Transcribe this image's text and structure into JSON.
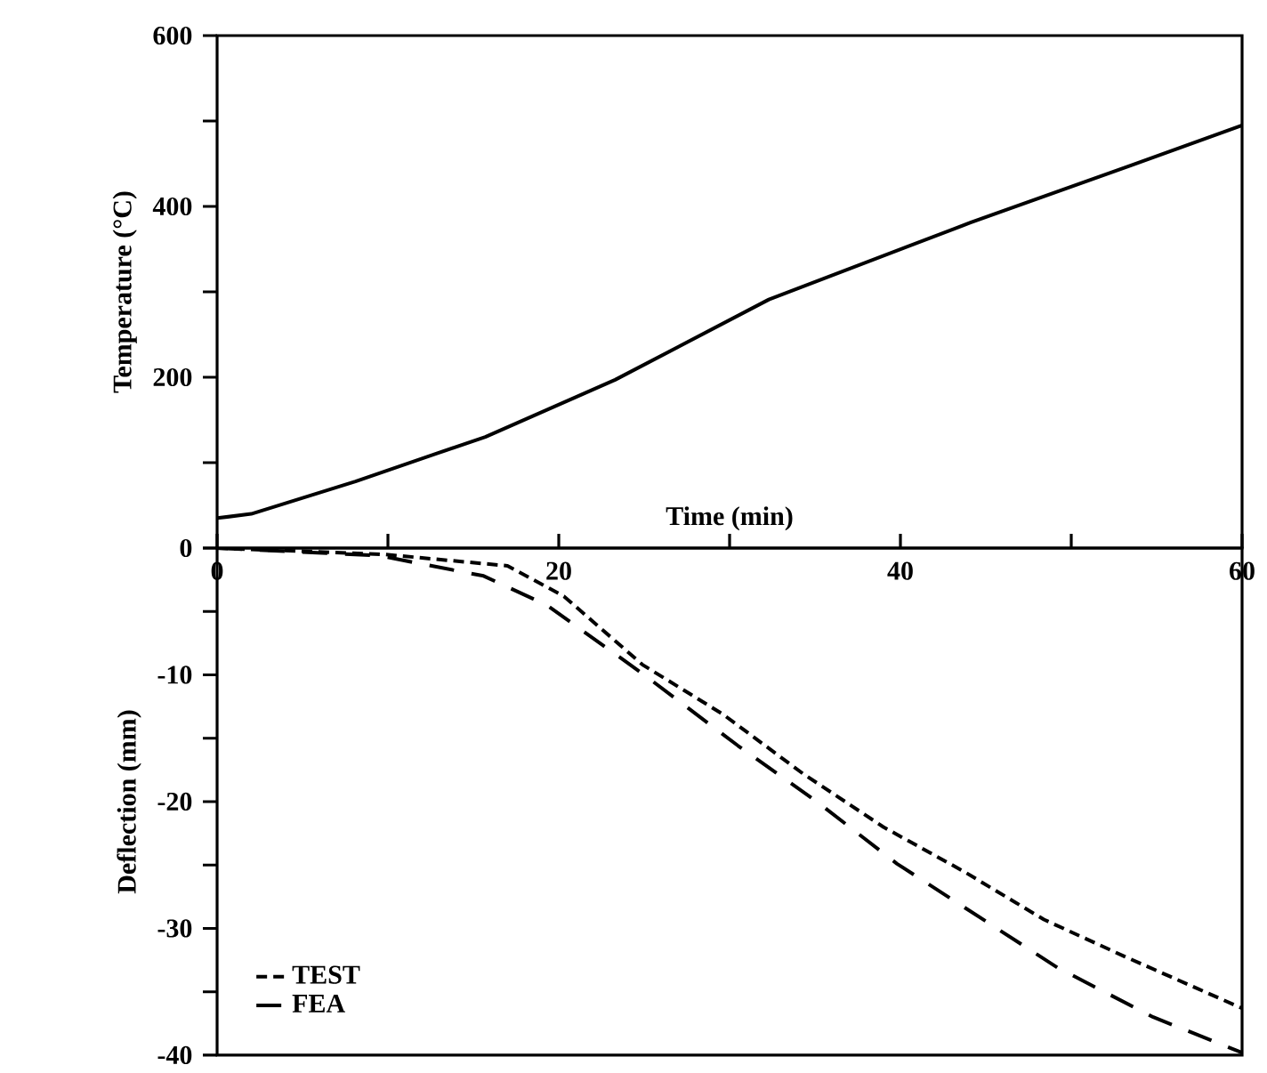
{
  "chart_data": [
    {
      "type": "line",
      "ylabel": "Temperature (°C)",
      "xlim": [
        0,
        60
      ],
      "ylim": [
        0,
        600
      ],
      "tick_labels": "y",
      "yticks": [
        {
          "value": 0,
          "label": null
        },
        {
          "value": 100,
          "label": null
        },
        200,
        {
          "value": 300,
          "label": null
        },
        400,
        {
          "value": 500,
          "label": null
        },
        600
      ],
      "series": [
        {
          "color": "#000000",
          "line_style": "solid",
          "x": [
            0,
            2,
            8.1,
            12.9,
            15.7,
            23.3,
            32.3,
            44.1,
            53.5,
            60
          ],
          "values": [
            35,
            40,
            78,
            111,
            130,
            197,
            291,
            381,
            448,
            495
          ]
        }
      ]
    },
    {
      "type": "line",
      "xlabel": "Time (min)",
      "ylabel": "Deflection (mm)",
      "xlim": [
        0,
        60
      ],
      "ylim": [
        -40,
        0
      ],
      "xticks": [
        0,
        {
          "value": 10,
          "label": null
        },
        20,
        {
          "value": 30,
          "label": null
        },
        40,
        {
          "value": 50,
          "label": null
        },
        60
      ],
      "yticks": [
        -40,
        {
          "value": -35,
          "label": null
        },
        -30,
        {
          "value": -25,
          "label": null
        },
        -20,
        {
          "value": -15,
          "label": null
        },
        -10,
        {
          "value": -5,
          "label": null
        },
        0
      ],
      "legend": "bottom left",
      "series": [
        {
          "name": "TEST",
          "color": "#000000",
          "line_style": "dashed",
          "x": [
            0,
            9.8,
            17.0,
            20.3,
            24.9,
            29.6,
            34.3,
            39.0,
            43.7,
            48.4,
            53.1,
            60
          ],
          "values": [
            0,
            -0.5,
            -1.4,
            -3.8,
            -9.2,
            -13.1,
            -17.8,
            -22,
            -25.5,
            -29.3,
            -32.2,
            -36.3
          ]
        },
        {
          "name": "FEA",
          "color": "#000000",
          "line_style": "dashed",
          "x": [
            0,
            9.5,
            15.6,
            19.3,
            24.9,
            30.5,
            35.2,
            39.8,
            44.5,
            49.2,
            54.8,
            60
          ],
          "values": [
            0,
            -0.6,
            -2.2,
            -4.5,
            -9.9,
            -15.6,
            -20.1,
            -24.9,
            -29,
            -33.1,
            -37,
            -39.8
          ]
        }
      ]
    }
  ]
}
